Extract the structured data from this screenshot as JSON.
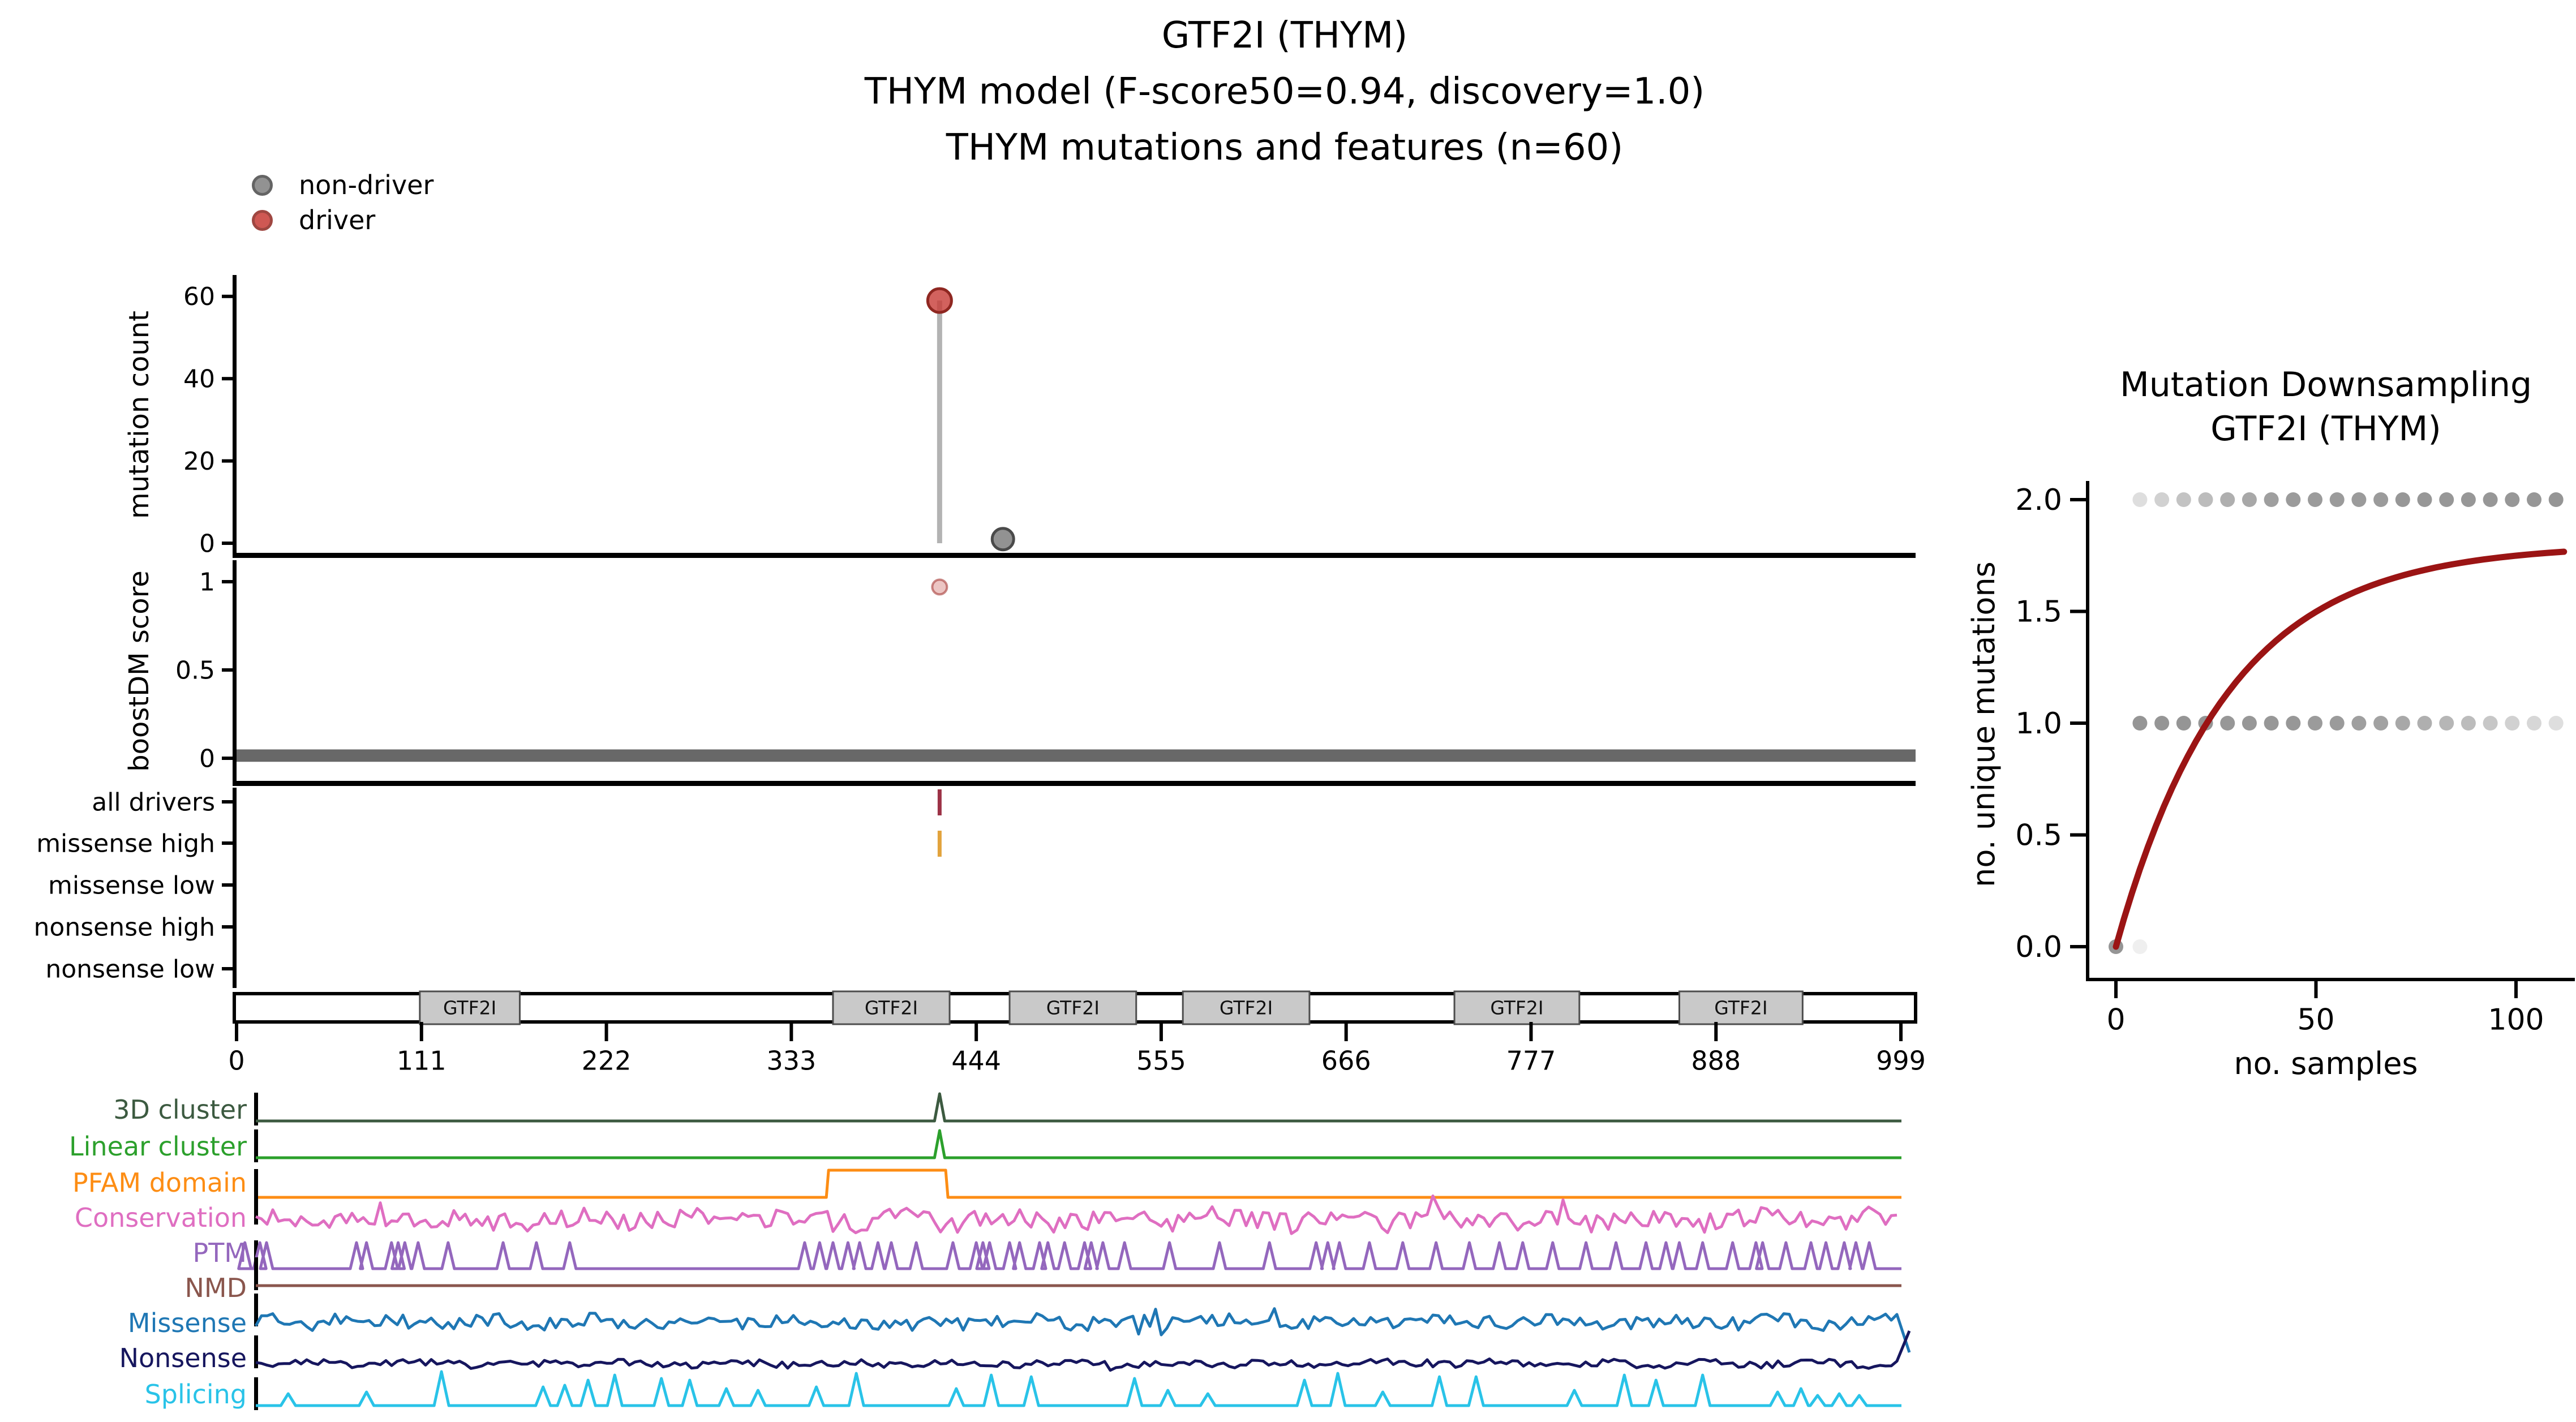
{
  "title": {
    "line1": "GTF2I (THYM)",
    "line2": "THYM model (F-score50=0.94, discovery=1.0)",
    "line3": "THYM mutations and features (n=60)"
  },
  "legend": {
    "items": [
      {
        "label": "non-driver",
        "fill": "#7f7f7f",
        "edge": "#4a4a4a"
      },
      {
        "label": "driver",
        "fill": "#c73b36",
        "edge": "#8f2721"
      }
    ]
  },
  "chart_data": [
    {
      "id": "needle_plot",
      "type": "scatter",
      "ylabel": "mutation count",
      "yticks": [
        0,
        20,
        40,
        60
      ],
      "ylim": [
        0,
        63
      ],
      "xlim": [
        0,
        999
      ],
      "points": [
        {
          "pos": 422,
          "count": 59,
          "class": "driver"
        },
        {
          "pos": 460,
          "count": 1,
          "class": "non-driver"
        }
      ],
      "colors": {
        "driver": "#c73b36",
        "driver_edge": "#8f2721",
        "non_driver": "#7f7f7f",
        "non_driver_edge": "#4a4a4a",
        "stem": "#b3b3b3"
      }
    },
    {
      "id": "boostdm_panel",
      "type": "scatter",
      "ylabel": "boostDM score",
      "yticks": [
        "0",
        "0.5",
        "1"
      ],
      "ylim": [
        -0.08,
        1.08
      ],
      "highlight_point": {
        "pos": 422,
        "score": 0.97,
        "class": "driver"
      },
      "background_band": {
        "score_min": -0.02,
        "score_max": 0.05,
        "color": "#686868",
        "note": "all possible mutations cluster near score 0"
      }
    },
    {
      "id": "consequence_panel",
      "type": "ticks",
      "rows": [
        "all drivers",
        "missense high",
        "missense low",
        "nonsense high",
        "nonsense low"
      ],
      "marks": [
        {
          "row": "all drivers",
          "pos": 422,
          "color": "#9c3246"
        },
        {
          "row": "missense high",
          "pos": 422,
          "color": "#e2a33c"
        }
      ]
    },
    {
      "id": "domain_track",
      "type": "table",
      "gene_length": 999,
      "xticks": [
        0,
        111,
        222,
        333,
        444,
        555,
        666,
        777,
        888,
        999
      ],
      "domains": [
        {
          "label": "GTF2I",
          "start": 110,
          "end": 170
        },
        {
          "label": "GTF2I",
          "start": 358,
          "end": 428
        },
        {
          "label": "GTF2I",
          "start": 464,
          "end": 540
        },
        {
          "label": "GTF2I",
          "start": 568,
          "end": 644
        },
        {
          "label": "GTF2I",
          "start": 731,
          "end": 806
        },
        {
          "label": "GTF2I",
          "start": 866,
          "end": 940
        }
      ]
    },
    {
      "id": "feature_tracks",
      "type": "line",
      "tracks": [
        {
          "name": "3D cluster",
          "color": "#3c5a40",
          "kind": "spike",
          "spikes": [
            422
          ]
        },
        {
          "name": "Linear cluster",
          "color": "#2ca02c",
          "kind": "spike",
          "spikes": [
            422
          ]
        },
        {
          "name": "PFAM domain",
          "color": "#fd8d14",
          "kind": "step",
          "start": 354,
          "end": 427
        },
        {
          "name": "Conservation",
          "color": "#df6ec1",
          "kind": "noise",
          "seed": 11,
          "amplitude": 0.55
        },
        {
          "name": "PTM",
          "color": "#9467bd",
          "kind": "spikes",
          "positions": [
            5,
            14,
            18,
            72,
            78,
            93,
            97,
            101,
            109,
            127,
            160,
            180,
            200,
            341,
            350,
            358,
            367,
            374,
            385,
            393,
            408,
            430,
            444,
            448,
            452,
            464,
            470,
            482,
            487,
            497,
            509,
            513,
            520,
            533,
            560,
            590,
            620,
            648,
            655,
            662,
            680,
            700,
            720,
            740,
            758,
            772,
            790,
            810,
            828,
            846,
            858,
            866,
            880,
            898,
            912,
            916,
            930,
            945,
            954,
            965,
            972,
            980
          ]
        },
        {
          "name": "NMD",
          "color": "#8a564d",
          "kind": "flat"
        },
        {
          "name": "Missense",
          "color": "#1f77b4",
          "kind": "noise",
          "seed": 4,
          "amplitude": 0.38,
          "edge": "down"
        },
        {
          "name": "Nonsense",
          "color": "#16165e",
          "kind": "noise",
          "seed": 8,
          "amplitude": 0.2,
          "edge": "up"
        },
        {
          "name": "Splicing",
          "color": "#29c3e8",
          "kind": "spikes_h",
          "positions_heights": [
            [
              31,
              0.35
            ],
            [
              78,
              0.4
            ],
            [
              123,
              1.0
            ],
            [
              184,
              0.55
            ],
            [
              197,
              0.6
            ],
            [
              211,
              0.75
            ],
            [
              227,
              0.9
            ],
            [
              255,
              0.8
            ],
            [
              272,
              0.75
            ],
            [
              294,
              0.5
            ],
            [
              313,
              0.45
            ],
            [
              348,
              0.55
            ],
            [
              372,
              0.95
            ],
            [
              432,
              0.5
            ],
            [
              453,
              0.9
            ],
            [
              477,
              0.85
            ],
            [
              539,
              0.8
            ],
            [
              559,
              0.45
            ],
            [
              583,
              0.35
            ],
            [
              641,
              0.75
            ],
            [
              661,
              0.95
            ],
            [
              688,
              0.4
            ],
            [
              722,
              0.85
            ],
            [
              744,
              0.85
            ],
            [
              803,
              0.45
            ],
            [
              833,
              0.9
            ],
            [
              852,
              0.75
            ],
            [
              880,
              0.9
            ],
            [
              925,
              0.4
            ],
            [
              939,
              0.5
            ],
            [
              949,
              0.3
            ],
            [
              962,
              0.35
            ],
            [
              974,
              0.3
            ]
          ]
        }
      ]
    },
    {
      "id": "downsampling",
      "type": "scatter",
      "title_line1": "Mutation Downsampling",
      "title_line2": "GTF2I (THYM)",
      "xlabel": "no. samples",
      "ylabel": "no. unique mutations",
      "xticks": [
        0,
        50,
        100
      ],
      "yticks": [
        "0.0",
        "0.5",
        "1.0",
        "1.5",
        "2.0"
      ],
      "xlim": [
        -5,
        115
      ],
      "ylim": [
        -0.1,
        2.1
      ],
      "dot_color": "#7a7a7a",
      "dot_rows": [
        {
          "y": 2.0,
          "x_start": 6,
          "x_end": 110,
          "n": 20,
          "alphas": [
            0.25,
            0.35,
            0.45,
            0.5,
            0.6,
            0.65,
            0.72,
            0.75,
            0.75,
            0.75,
            0.75,
            0.75,
            0.78,
            0.78,
            0.78,
            0.78,
            0.78,
            0.78,
            0.78,
            0.8
          ]
        },
        {
          "y": 1.0,
          "x_start": 6,
          "x_end": 110,
          "n": 20,
          "alphas": [
            0.8,
            0.8,
            0.8,
            0.8,
            0.78,
            0.78,
            0.78,
            0.78,
            0.75,
            0.75,
            0.72,
            0.7,
            0.65,
            0.6,
            0.55,
            0.5,
            0.42,
            0.35,
            0.3,
            0.25
          ]
        }
      ],
      "origin_points": [
        {
          "x": 0,
          "y": 0,
          "alpha": 0.8
        },
        {
          "x": 6,
          "y": 0,
          "alpha": 0.12
        }
      ],
      "curve": {
        "color": "#9b1414",
        "model": "y = ymax*(1-exp(-x/tau))",
        "ymax": 1.8,
        "tau": 28,
        "x_end": 112,
        "y_at_end": 1.78
      }
    }
  ]
}
